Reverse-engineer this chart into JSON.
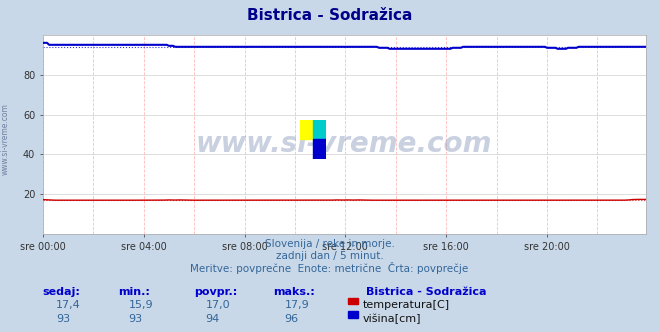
{
  "title": "Bistrica - Sodražica",
  "bg_color": "#c8d8e8",
  "plot_bg_color": "#ffffff",
  "title_color": "#00008b",
  "grid_color_h": "#dddddd",
  "grid_color_v": "#ffbbbb",
  "line_color_temp": "#cc0000",
  "line_color_height": "#0000cc",
  "ylim": [
    0,
    100
  ],
  "yticks": [
    20,
    40,
    60,
    80
  ],
  "xlabel_ticks": [
    "sre 00:00",
    "sre 04:00",
    "sre 08:00",
    "sre 12:00",
    "sre 16:00",
    "sre 20:00"
  ],
  "xlabel_tick_positions": [
    0,
    48,
    96,
    144,
    192,
    240
  ],
  "n_points": 288,
  "avg_temp": 17.0,
  "avg_height": 94.0,
  "watermark": "www.si-vreme.com",
  "subtitle1": "Slovenija / reke in morje.",
  "subtitle2": "zadnji dan / 5 minut.",
  "subtitle3": "Meritve: povprečne  Enote: metrične  Črta: povprečje",
  "legend_title": "Bistrica - Sodražica",
  "legend_temp_label": "temperatura[C]",
  "legend_height_label": "višina[cm]",
  "stats_headers": [
    "sedaj:",
    "min.:",
    "povpr.:",
    "maks.:"
  ],
  "stats_temp": [
    "17,4",
    "15,9",
    "17,0",
    "17,9"
  ],
  "stats_height": [
    "93",
    "93",
    "94",
    "96"
  ],
  "text_color": "#336699",
  "label_color": "#0000cc"
}
